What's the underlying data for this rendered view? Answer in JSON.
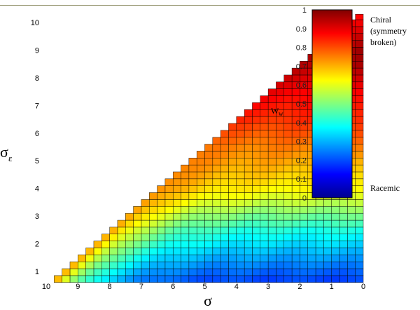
{
  "chart_data": {
    "type": "heatmap",
    "title": "",
    "xlabel": "σ",
    "ylabel": {
      "main": "σ",
      "sub": "ε"
    },
    "x_ticks": [
      10,
      9,
      8,
      7,
      6,
      5,
      4,
      3,
      2,
      1,
      0
    ],
    "y_ticks": [
      1,
      2,
      3,
      4,
      5,
      6,
      7,
      8,
      9,
      10
    ],
    "xlim": [
      10,
      0
    ],
    "ylim": [
      0.6,
      10.3
    ],
    "grid_cells_per_unit": 4,
    "grid": true,
    "colorbar": {
      "label": {
        "main": "W",
        "sub": "w"
      },
      "ticks": [
        0,
        0.1,
        0.2,
        0.3,
        0.4,
        0.5,
        0.6,
        0.7,
        0.8,
        0.9,
        1
      ],
      "range": [
        0,
        1
      ],
      "top_label_lines": [
        "Chiral",
        "(symmetry",
        "broken)"
      ],
      "bottom_label": "Racemic",
      "colormap": "jet"
    },
    "value_profile_by_sigma_eps": [
      [
        0.6,
        0.18
      ],
      [
        1.0,
        0.22
      ],
      [
        1.5,
        0.28
      ],
      [
        2.0,
        0.34
      ],
      [
        2.5,
        0.4
      ],
      [
        3.0,
        0.48
      ],
      [
        3.5,
        0.56
      ],
      [
        4.0,
        0.63
      ],
      [
        4.5,
        0.67
      ],
      [
        5.0,
        0.71
      ],
      [
        5.5,
        0.75
      ],
      [
        6.0,
        0.79
      ],
      [
        6.5,
        0.83
      ],
      [
        7.0,
        0.86
      ],
      [
        7.5,
        0.89
      ],
      [
        8.0,
        0.92
      ],
      [
        8.5,
        0.95
      ],
      [
        9.0,
        0.96
      ],
      [
        9.5,
        0.93
      ],
      [
        10.3,
        0.88
      ]
    ]
  }
}
